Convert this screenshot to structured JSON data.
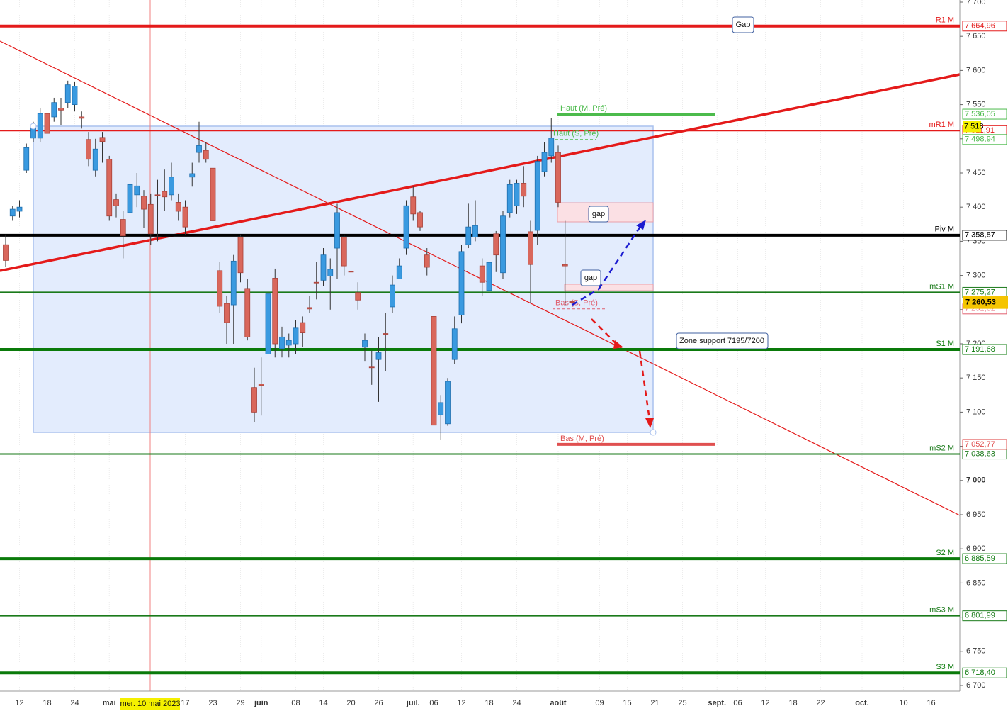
{
  "chart_data": {
    "type": "candlestick",
    "categories": [
      null,
      null,
      "12",
      null,
      null,
      null,
      "18",
      null,
      null,
      null,
      "24",
      null,
      null,
      null,
      null,
      "mai",
      null,
      null,
      null,
      null,
      null,
      null,
      null,
      null,
      null,
      null,
      "17",
      null,
      null,
      null,
      "23",
      null,
      null,
      null,
      "29",
      null,
      null,
      "juin",
      null,
      null,
      null,
      null,
      "08",
      null,
      null,
      null,
      "14",
      null,
      null,
      null,
      "20",
      null,
      null,
      null,
      "26",
      null,
      null,
      null,
      null,
      "juil.",
      null,
      null,
      "06",
      null,
      null,
      null,
      "12",
      null,
      null,
      null,
      "18",
      null,
      null,
      null,
      "24",
      null,
      null,
      null,
      null,
      null,
      "août",
      null,
      null,
      null,
      null,
      null,
      "09",
      null,
      null,
      null,
      "15",
      null,
      null,
      null,
      "21",
      null,
      null,
      null,
      "25",
      null,
      null,
      null,
      null,
      "sept.",
      null,
      null,
      "06",
      null,
      null,
      null,
      "12",
      null,
      null,
      null,
      "18",
      null,
      null,
      null,
      "22",
      null,
      null,
      null,
      null,
      null,
      "oct.",
      null,
      null,
      null,
      null,
      null,
      "10",
      null,
      null,
      null,
      "16",
      null,
      null
    ],
    "open": [
      7345,
      7387,
      7394,
      7454,
      7501,
      7501,
      7537,
      7532,
      7545,
      7553,
      7550,
      7532,
      7499,
      7454,
      7502,
      7470,
      7411,
      7382,
      7392,
      7418,
      7416,
      7404,
      7418,
      7423,
      7418,
      7407,
      7400,
      7444,
      7480,
      7483,
      7457,
      7307,
      7259,
      7257,
      7356,
      7281,
      7136,
      7141,
      7185,
      7296,
      7193,
      7198,
      7200,
      7231,
      7253,
      7290,
      7293,
      7299,
      7340,
      7356,
      7306,
      7275,
      7195,
      7166,
      7177,
      7215,
      7254,
      7295,
      7340,
      7415,
      7392,
      7330,
      7240,
      7096,
      7083,
      7177,
      7242,
      7345,
      7356,
      7314,
      7278,
      7361,
      7304,
      7392,
      7402,
      7435,
      7364,
      7366,
      7452,
      7475,
      7480,
      7316,
      7262,
      null,
      null,
      null,
      null,
      null,
      null,
      null,
      null,
      null,
      null,
      null,
      null,
      null,
      null,
      null,
      null,
      null,
      null,
      null,
      null,
      null,
      null,
      null,
      null,
      null,
      null,
      null,
      null,
      null,
      null,
      null,
      null,
      null,
      null,
      null,
      null,
      null,
      null,
      null,
      null,
      null,
      null,
      null,
      null,
      null,
      null,
      null,
      null,
      null,
      null,
      null,
      null,
      null,
      null
    ],
    "high": [
      7360,
      7402,
      7410,
      7493,
      7525,
      7545,
      7545,
      7560,
      7560,
      7585,
      7583,
      7540,
      7510,
      7500,
      7510,
      7475,
      7420,
      7395,
      7440,
      7450,
      7425,
      7420,
      7440,
      7455,
      7465,
      7420,
      7410,
      7465,
      7525,
      7495,
      7460,
      7320,
      7270,
      7330,
      7360,
      7295,
      7165,
      7180,
      7280,
      7310,
      7225,
      7215,
      7235,
      7240,
      7270,
      7320,
      7340,
      7325,
      7405,
      7360,
      7320,
      7290,
      7215,
      7190,
      7210,
      7245,
      7300,
      7325,
      7410,
      7430,
      7395,
      7340,
      7245,
      7125,
      7150,
      7240,
      7345,
      7405,
      7410,
      7325,
      7325,
      7365,
      7395,
      7440,
      7440,
      7460,
      7380,
      7475,
      7495,
      7530,
      7490,
      7380,
      7270,
      null,
      null,
      null,
      null,
      null,
      null,
      null,
      null,
      null,
      null,
      null,
      null,
      null,
      null,
      null,
      null,
      null,
      null,
      null,
      null,
      null,
      null,
      null,
      null,
      null,
      null,
      null,
      null,
      null,
      null,
      null,
      null,
      null,
      null,
      null,
      null,
      null,
      null,
      null,
      null,
      null,
      null,
      null,
      null,
      null,
      null,
      null,
      null,
      null,
      null,
      null,
      null,
      null,
      null
    ],
    "low": [
      7312,
      7380,
      7385,
      7450,
      7495,
      7495,
      7500,
      7525,
      7520,
      7545,
      7540,
      7515,
      7460,
      7445,
      7465,
      7380,
      7385,
      7325,
      7380,
      7400,
      7370,
      7345,
      7350,
      7395,
      7410,
      7380,
      7360,
      7430,
      7465,
      7465,
      7375,
      7245,
      7200,
      7200,
      7290,
      7205,
      7085,
      7095,
      7175,
      7180,
      7180,
      7180,
      7185,
      7195,
      7245,
      7265,
      7285,
      7250,
      7295,
      7300,
      7290,
      7250,
      7175,
      7140,
      7115,
      7160,
      7245,
      7295,
      7330,
      7380,
      7365,
      7300,
      7070,
      7060,
      7080,
      7170,
      7230,
      7340,
      7350,
      7270,
      7270,
      7305,
      7295,
      7385,
      7390,
      7400,
      7260,
      7345,
      7445,
      7465,
      7400,
      7255,
      7220,
      null,
      null,
      null,
      null,
      null,
      null,
      null,
      null,
      null,
      null,
      null,
      null,
      null,
      null,
      null,
      null,
      null,
      null,
      null,
      null,
      null,
      null,
      null,
      null,
      null,
      null,
      null,
      null,
      null,
      null,
      null,
      null,
      null,
      null,
      null,
      null,
      null,
      null,
      null,
      null,
      null,
      null,
      null,
      null,
      null,
      null,
      null,
      null,
      null,
      null,
      null,
      null,
      null,
      null
    ],
    "close": [
      7322,
      7397,
      7400,
      7487,
      7516,
      7537,
      7508,
      7553,
      7542,
      7579,
      7577,
      7530,
      7470,
      7485,
      7496,
      7387,
      7402,
      7358,
      7433,
      7431,
      7397,
      7361,
      7417,
      7415,
      7444,
      7394,
      7371,
      7449,
      7490,
      7470,
      7380,
      7255,
      7231,
      7321,
      7304,
      7210,
      7100,
      7139,
      7273,
      7200,
      7210,
      7205,
      7223,
      7216,
      7251,
      7289,
      7330,
      7309,
      7392,
      7314,
      7305,
      7264,
      7205,
      7165,
      7187,
      7214,
      7286,
      7314,
      7402,
      7390,
      7371,
      7312,
      7081,
      7114,
      7145,
      7222,
      7335,
      7371,
      7373,
      7290,
      7319,
      7330,
      7387,
      7433,
      7435,
      7416,
      7316,
      7467,
      7480,
      7501,
      7407,
      7314,
      7260.53,
      null,
      null,
      null,
      null,
      null,
      null,
      null,
      null,
      null,
      null,
      null,
      null,
      null,
      null,
      null,
      null,
      null,
      null,
      null,
      null,
      null,
      null,
      null,
      null,
      null,
      null,
      null,
      null,
      null,
      null,
      null,
      null,
      null,
      null,
      null,
      null,
      null,
      null,
      null,
      null,
      null,
      null,
      null,
      null,
      null,
      null,
      null,
      null,
      null,
      null,
      null,
      null,
      null,
      null
    ],
    "up_color": "#3a9ae0",
    "down_color": "#d9675c",
    "ylim": [
      6691.7,
      7703.1
    ],
    "yticks": [
      {
        "value": 7700,
        "label": "7 700"
      },
      {
        "value": 7650,
        "label": "7 650"
      },
      {
        "value": 7600,
        "label": "7 600"
      },
      {
        "value": 7550,
        "label": "7 550"
      },
      {
        "value": 7500,
        "label": "7 500"
      },
      {
        "value": 7450,
        "label": "7 450"
      },
      {
        "value": 7400,
        "label": "7 400"
      },
      {
        "value": 7350,
        "label": "7 350"
      },
      {
        "value": 7300,
        "label": "7 300"
      },
      {
        "value": 7250,
        "label": "7 250"
      },
      {
        "value": 7200,
        "label": "7 200"
      },
      {
        "value": 7150,
        "label": "7 150"
      },
      {
        "value": 7100,
        "label": "7 100"
      },
      {
        "value": 7050,
        "label": "7 050"
      },
      {
        "value": 7000,
        "label": "7 000"
      },
      {
        "value": 6950,
        "label": "6 950"
      },
      {
        "value": 6900,
        "label": "6 900"
      },
      {
        "value": 6850,
        "label": "6 850"
      },
      {
        "value": 6800,
        "label": "6 800"
      },
      {
        "value": 6750,
        "label": "6 750"
      },
      {
        "value": 6700,
        "label": "6 700"
      }
    ],
    "grid": true,
    "levels": [
      {
        "name": "R1 M",
        "value": 7664.96,
        "value_label": "7 664,96",
        "color": "#e41a1a",
        "width": 4
      },
      {
        "name": "mR1 M",
        "value": 7511.91,
        "value_label": "7 511,91",
        "color": "#e41a1a",
        "width": 2
      },
      {
        "name": "Piv M",
        "value": 7358.87,
        "value_label": "7 358,87",
        "color": "#000000",
        "width": 4
      },
      {
        "name": "mS1 M",
        "value": 7275.27,
        "value_label": "7 275,27",
        "color": "#1a7a1a",
        "width": 2
      },
      {
        "name": "S1 M",
        "value": 7191.68,
        "value_label": "7 191,68",
        "color": "#0a7a0a",
        "width": 4
      },
      {
        "name": "mS2 M",
        "value": 7038.63,
        "value_label": "7 038,63",
        "color": "#1a7a1a",
        "width": 2
      },
      {
        "name": "S2 M",
        "value": 6885.59,
        "value_label": "6 885,59",
        "color": "#0a7a0a",
        "width": 4
      },
      {
        "name": "mS3 M",
        "value": 6801.99,
        "value_label": "6 801,99",
        "color": "#1a7a1a",
        "width": 2
      },
      {
        "name": "S3 M",
        "value": 6718.4,
        "value_label": "6 718,40",
        "color": "#0a7a0a",
        "width": 4
      }
    ],
    "references": [
      {
        "name": "Haut (M, Pré)",
        "value": 7536.05,
        "value_label": "7 536,05",
        "color": "#4cbb4c"
      },
      {
        "name": "Haut (S, Pré)",
        "value": 7498.94,
        "value_label": "7 498,94",
        "color": "#4cbb4c"
      },
      {
        "name": "Bas (S, Pré)",
        "value": 7251.02,
        "value_label": "7 251,02",
        "color": "#e06070"
      },
      {
        "name": "Bas (M, Pré)",
        "value": 7052.77,
        "value_label": "7 052,77",
        "color": "#e05050"
      }
    ],
    "last_price": {
      "value": 7260.53,
      "label": "7 260,53"
    },
    "crosshair": {
      "value": 7518,
      "label": "7 518",
      "date_label": "mer. 10 mai 2023"
    },
    "annotations": [
      "Gap",
      "gap",
      "gap",
      "Zone support 7195/7200"
    ]
  }
}
